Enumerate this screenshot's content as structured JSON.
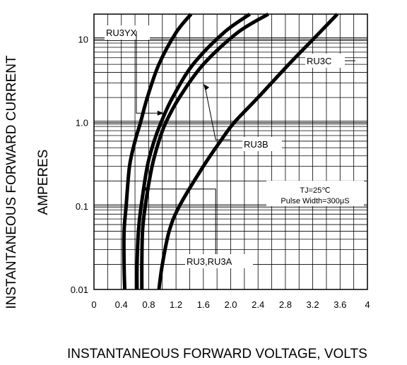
{
  "chart_data": {
    "type": "line",
    "title": "",
    "xlabel": "INSTANTANEOUS FORWARD VOLTAGE,  VOLTS",
    "ylabel_line1": "INSTANTANEOUS FORWARD CURRENT",
    "ylabel_line2": "AMPERES",
    "x_scale": "linear",
    "y_scale": "log",
    "xlim": [
      0,
      4.0
    ],
    "ylim": [
      0.01,
      20
    ],
    "grid": true,
    "x_ticks": [
      "0",
      "0.4",
      "0.8",
      "1.2",
      "1.6",
      "2.0",
      "2.4",
      "2.8",
      "3.2",
      "3.6",
      "4"
    ],
    "y_ticks": [
      "10",
      "1.0",
      "0.1",
      "0.01"
    ],
    "conditions": [
      "TJ=25℃",
      "Pulse Width=300μS"
    ],
    "series": [
      {
        "name": "RU3YX",
        "points": [
          [
            0.45,
            0.01
          ],
          [
            0.44,
            0.02
          ],
          [
            0.44,
            0.05
          ],
          [
            0.47,
            0.1
          ],
          [
            0.52,
            0.3
          ],
          [
            0.6,
            0.6
          ],
          [
            0.68,
            1.0
          ],
          [
            0.78,
            2.0
          ],
          [
            0.95,
            5.0
          ],
          [
            1.2,
            12.0
          ],
          [
            1.42,
            20.0
          ]
        ]
      },
      {
        "name": "RU3,RU3A",
        "points": [
          [
            0.63,
            0.01
          ],
          [
            0.63,
            0.02
          ],
          [
            0.65,
            0.05
          ],
          [
            0.69,
            0.1
          ],
          [
            0.78,
            0.3
          ],
          [
            0.88,
            0.6
          ],
          [
            0.98,
            1.0
          ],
          [
            1.15,
            2.0
          ],
          [
            1.45,
            5.0
          ],
          [
            1.9,
            12.0
          ],
          [
            2.28,
            20.0
          ]
        ]
      },
      {
        "name": "RU3B",
        "points": [
          [
            0.7,
            0.01
          ],
          [
            0.7,
            0.02
          ],
          [
            0.71,
            0.05
          ],
          [
            0.75,
            0.1
          ],
          [
            0.85,
            0.3
          ],
          [
            0.95,
            0.6
          ],
          [
            1.05,
            1.0
          ],
          [
            1.25,
            2.0
          ],
          [
            1.6,
            5.0
          ],
          [
            2.1,
            12.0
          ],
          [
            2.55,
            20.0
          ]
        ]
      },
      {
        "name": "RU3C",
        "points": [
          [
            0.95,
            0.01
          ],
          [
            1.0,
            0.02
          ],
          [
            1.1,
            0.05
          ],
          [
            1.25,
            0.1
          ],
          [
            1.6,
            0.3
          ],
          [
            1.85,
            0.6
          ],
          [
            2.05,
            1.0
          ],
          [
            2.4,
            2.0
          ],
          [
            2.85,
            5.0
          ],
          [
            3.3,
            12.0
          ],
          [
            3.56,
            20.0
          ]
        ]
      }
    ]
  }
}
